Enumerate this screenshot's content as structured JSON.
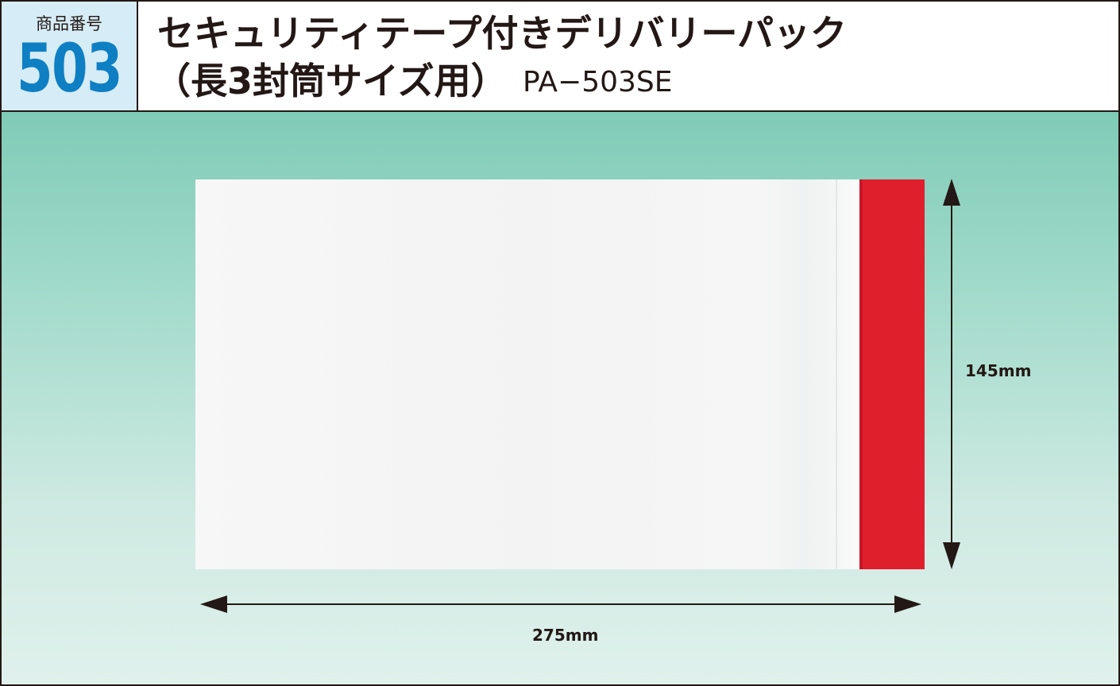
{
  "header": {
    "number_label": "商品番号",
    "number_value": "503",
    "title_line1": "セキュリティテープ付きデリバリーパック",
    "title_line2": "（長3封筒サイズ用）",
    "product_code": "PA−503SE"
  },
  "dimensions": {
    "height": "145mm",
    "width": "275mm"
  },
  "colors": {
    "accent_blue": "#0f7fc4",
    "number_box_bg": "#d6ecf6",
    "security_tape_red": "#e01f2d",
    "background_teal": "#7fcbb7"
  }
}
